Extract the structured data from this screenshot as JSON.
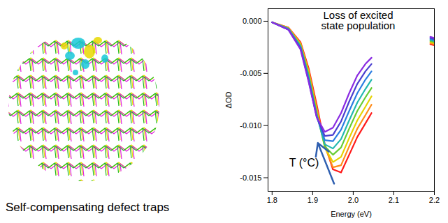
{
  "chart_data": {
    "type": "line",
    "xlabel": "Energy (eV)",
    "ylabel": "ΔOD",
    "xlim": [
      1.79,
      2.2
    ],
    "ylim": [
      -0.0163,
      0.0012
    ],
    "xticks": [
      1.8,
      1.9,
      {
        "value": 2,
        "label": "2.0"
      },
      2.1,
      2.2
    ],
    "yticks": [
      {
        "value": 0,
        "label": "0.000"
      },
      {
        "value": -0.005,
        "label": "-0.005"
      },
      {
        "value": -0.01,
        "label": "-0.010"
      },
      {
        "value": -0.015,
        "label": "-0.015"
      }
    ],
    "grid": false,
    "annotations": [
      {
        "text": "Loss of excited state population"
      },
      {
        "text": "T (°C)"
      }
    ],
    "x": [
      1.8,
      1.84,
      1.87,
      1.89,
      1.91,
      1.93,
      1.95,
      1.97,
      1.99,
      2.01,
      2.03,
      2.045,
      2.1,
      2.19,
      2.21
    ],
    "series": [
      {
        "color": "#ff1a1a",
        "values": [
          -0.0001,
          -0.0006,
          -0.002,
          -0.0045,
          -0.008,
          -0.0118,
          -0.0142,
          -0.0145,
          -0.0128,
          -0.0111,
          -0.0098,
          -0.0088,
          null,
          -0.0022,
          -0.0024
        ]
      },
      {
        "color": "#ff8c1a",
        "values": [
          -0.0001,
          -0.0006,
          -0.0021,
          -0.0047,
          -0.0083,
          -0.012,
          -0.014,
          -0.0138,
          -0.012,
          -0.0103,
          -0.009,
          -0.008,
          null,
          -0.0021,
          -0.0023
        ]
      },
      {
        "color": "#e6d200",
        "values": [
          -0.0001,
          -0.0007,
          -0.0022,
          -0.0049,
          -0.0086,
          -0.0121,
          -0.0135,
          -0.013,
          -0.0112,
          -0.0095,
          -0.0082,
          -0.0072,
          null,
          -0.002,
          -0.0022
        ]
      },
      {
        "color": "#66cc33",
        "values": [
          -0.0001,
          -0.0007,
          -0.0023,
          -0.0051,
          -0.0088,
          -0.012,
          -0.0128,
          -0.0121,
          -0.0103,
          -0.0086,
          -0.0073,
          -0.0064,
          null,
          -0.0019,
          -0.0021
        ]
      },
      {
        "color": "#22b8b0",
        "values": [
          -0.0001,
          -0.0007,
          -0.0024,
          -0.0053,
          -0.009,
          -0.0118,
          -0.0122,
          -0.0113,
          -0.0095,
          -0.0078,
          -0.0065,
          -0.0056,
          null,
          -0.0018,
          -0.002
        ]
      },
      {
        "color": "#2a7de1",
        "values": [
          -0.0001,
          -0.0008,
          -0.0025,
          -0.0055,
          -0.0091,
          -0.0114,
          -0.0115,
          -0.0104,
          -0.0086,
          -0.0069,
          -0.0056,
          -0.0048,
          null,
          -0.0017,
          -0.0019
        ]
      },
      {
        "color": "#4b3fcf",
        "values": [
          -0.0001,
          -0.0008,
          -0.0026,
          -0.0057,
          -0.0092,
          -0.011,
          -0.0109,
          -0.0096,
          -0.0077,
          -0.006,
          -0.0048,
          -0.0041,
          null,
          -0.0016,
          -0.0018
        ]
      },
      {
        "color": "#8a2be2",
        "values": [
          -0.0001,
          -0.0008,
          -0.0027,
          -0.0058,
          -0.0092,
          -0.0106,
          -0.0102,
          -0.0088,
          -0.0069,
          -0.0052,
          -0.0041,
          -0.0035,
          null,
          -0.0015,
          -0.0017
        ]
      }
    ]
  },
  "figure": {
    "caption": "Self-compensating defect traps"
  }
}
